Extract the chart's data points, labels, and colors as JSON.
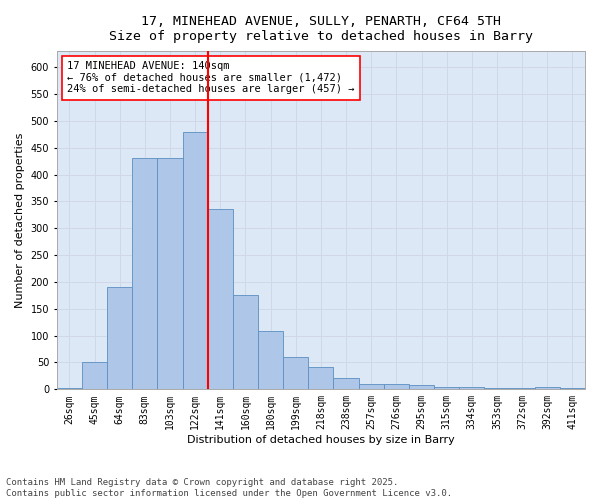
{
  "title_line1": "17, MINEHEAD AVENUE, SULLY, PENARTH, CF64 5TH",
  "title_line2": "Size of property relative to detached houses in Barry",
  "xlabel": "Distribution of detached houses by size in Barry",
  "ylabel": "Number of detached properties",
  "categories": [
    "26sqm",
    "45sqm",
    "64sqm",
    "83sqm",
    "103sqm",
    "122sqm",
    "141sqm",
    "160sqm",
    "180sqm",
    "199sqm",
    "218sqm",
    "238sqm",
    "257sqm",
    "276sqm",
    "295sqm",
    "315sqm",
    "334sqm",
    "353sqm",
    "372sqm",
    "392sqm",
    "411sqm"
  ],
  "values": [
    3,
    50,
    190,
    430,
    430,
    480,
    335,
    175,
    108,
    60,
    42,
    22,
    10,
    10,
    8,
    5,
    5,
    2,
    2,
    5,
    2
  ],
  "bar_color": "#aec6e8",
  "bar_edge_color": "#5a8fc2",
  "vline_color": "red",
  "annotation_text": "17 MINEHEAD AVENUE: 140sqm\n← 76% of detached houses are smaller (1,472)\n24% of semi-detached houses are larger (457) →",
  "annotation_box_color": "#ffffff",
  "annotation_box_edge": "red",
  "ylim": [
    0,
    630
  ],
  "yticks": [
    0,
    50,
    100,
    150,
    200,
    250,
    300,
    350,
    400,
    450,
    500,
    550,
    600
  ],
  "grid_color": "#d0d8e8",
  "bg_color": "#dce8f5",
  "footer_text": "Contains HM Land Registry data © Crown copyright and database right 2025.\nContains public sector information licensed under the Open Government Licence v3.0.",
  "title_fontsize": 9.5,
  "label_fontsize": 8,
  "tick_fontsize": 7,
  "footer_fontsize": 6.5,
  "annot_fontsize": 7.5
}
